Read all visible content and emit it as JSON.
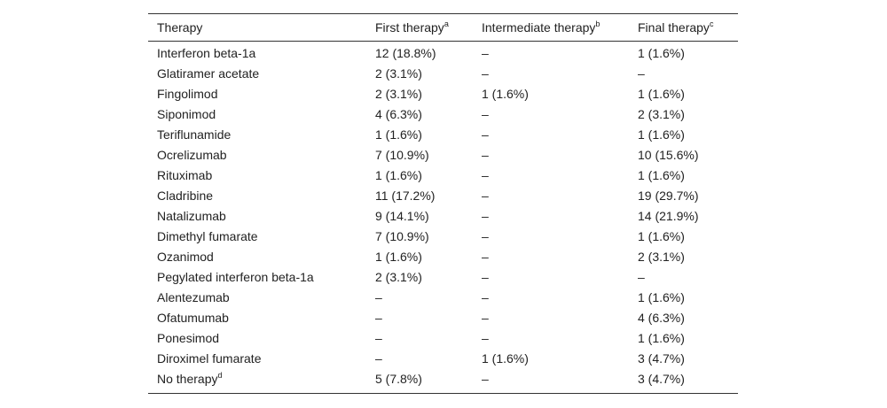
{
  "table": {
    "header": [
      {
        "text": "Therapy"
      },
      {
        "text": "First therapy",
        "sup": "a"
      },
      {
        "text": "Intermediate therapy",
        "sup": "b"
      },
      {
        "text": "Final therapy",
        "sup": "c"
      }
    ],
    "rows": [
      [
        "Interferon beta-1a",
        "12 (18.8%)",
        "–",
        "1 (1.6%)"
      ],
      [
        "Glatiramer acetate",
        "2 (3.1%)",
        "–",
        "–"
      ],
      [
        "Fingolimod",
        "2 (3.1%)",
        "1 (1.6%)",
        "1 (1.6%)"
      ],
      [
        "Siponimod",
        "4 (6.3%)",
        "–",
        "2 (3.1%)"
      ],
      [
        "Teriflunamide",
        "1 (1.6%)",
        "–",
        "1 (1.6%)"
      ],
      [
        "Ocrelizumab",
        "7 (10.9%)",
        "–",
        "10 (15.6%)"
      ],
      [
        "Rituximab",
        "1 (1.6%)",
        "–",
        "1 (1.6%)"
      ],
      [
        "Cladribine",
        "11 (17.2%)",
        "–",
        "19 (29.7%)"
      ],
      [
        "Natalizumab",
        "9 (14.1%)",
        "–",
        "14 (21.9%)"
      ],
      [
        "Dimethyl fumarate",
        "7 (10.9%)",
        "–",
        "1 (1.6%)"
      ],
      [
        "Ozanimod",
        "1 (1.6%)",
        "–",
        "2 (3.1%)"
      ],
      [
        "Pegylated interferon beta-1a",
        "2 (3.1%)",
        "–",
        "–"
      ],
      [
        "Alentezumab",
        "–",
        "–",
        "1 (1.6%)"
      ],
      [
        "Ofatumumab",
        "–",
        "–",
        "4 (6.3%)"
      ],
      [
        "Ponesimod",
        "–",
        "–",
        "1 (1.6%)"
      ],
      [
        "Diroximel fumarate",
        "–",
        "1 (1.6%)",
        "3 (4.7%)"
      ],
      [
        {
          "text": "No therapy",
          "sup": "d"
        },
        "5 (7.8%)",
        "–",
        "3 (4.7%)"
      ]
    ]
  }
}
